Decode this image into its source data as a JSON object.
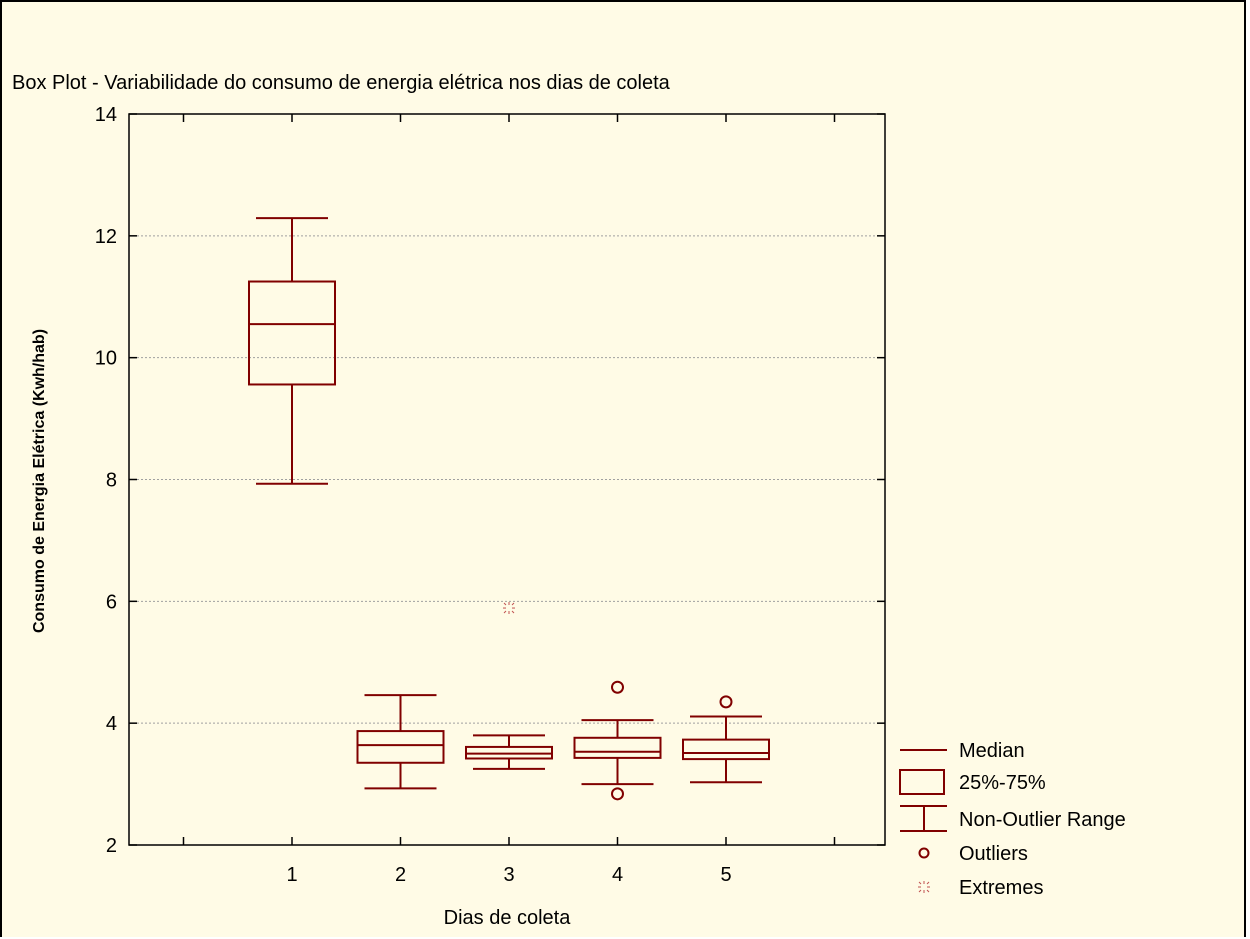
{
  "chart_data": {
    "type": "boxplot",
    "title": "Box Plot - Variabilidade do consumo de energia elétrica nos dias de coleta",
    "xlabel": "Dias de coleta",
    "ylabel": "Consumo de Energia Elétrica (Kwh/hab)",
    "ylim": [
      2,
      14
    ],
    "yticks": [
      2,
      4,
      6,
      8,
      10,
      12,
      14
    ],
    "grid": true,
    "color": "#800000",
    "categories": [
      "1",
      "2",
      "3",
      "4",
      "5"
    ],
    "boxes": [
      {
        "category": "1",
        "whisker_low": 7.93,
        "q1": 9.56,
        "median": 10.55,
        "q3": 11.25,
        "whisker_high": 12.29,
        "outliers": [],
        "extremes": []
      },
      {
        "category": "2",
        "whisker_low": 2.93,
        "q1": 3.35,
        "median": 3.64,
        "q3": 3.87,
        "whisker_high": 4.46,
        "outliers": [],
        "extremes": []
      },
      {
        "category": "3",
        "whisker_low": 3.25,
        "q1": 3.42,
        "median": 3.5,
        "q3": 3.61,
        "whisker_high": 3.8,
        "outliers": [],
        "extremes": [
          5.89
        ]
      },
      {
        "category": "4",
        "whisker_low": 3.0,
        "q1": 3.43,
        "median": 3.53,
        "q3": 3.76,
        "whisker_high": 4.05,
        "outliers": [
          4.59,
          2.84
        ],
        "extremes": []
      },
      {
        "category": "5",
        "whisker_low": 3.03,
        "q1": 3.41,
        "median": 3.51,
        "q3": 3.73,
        "whisker_high": 4.11,
        "outliers": [
          4.35
        ],
        "extremes": []
      }
    ],
    "legend": {
      "placement": "bottom-right",
      "items": [
        "Median",
        "25%-75%",
        "Non-Outlier Range",
        "Outliers",
        "Extremes"
      ]
    }
  }
}
